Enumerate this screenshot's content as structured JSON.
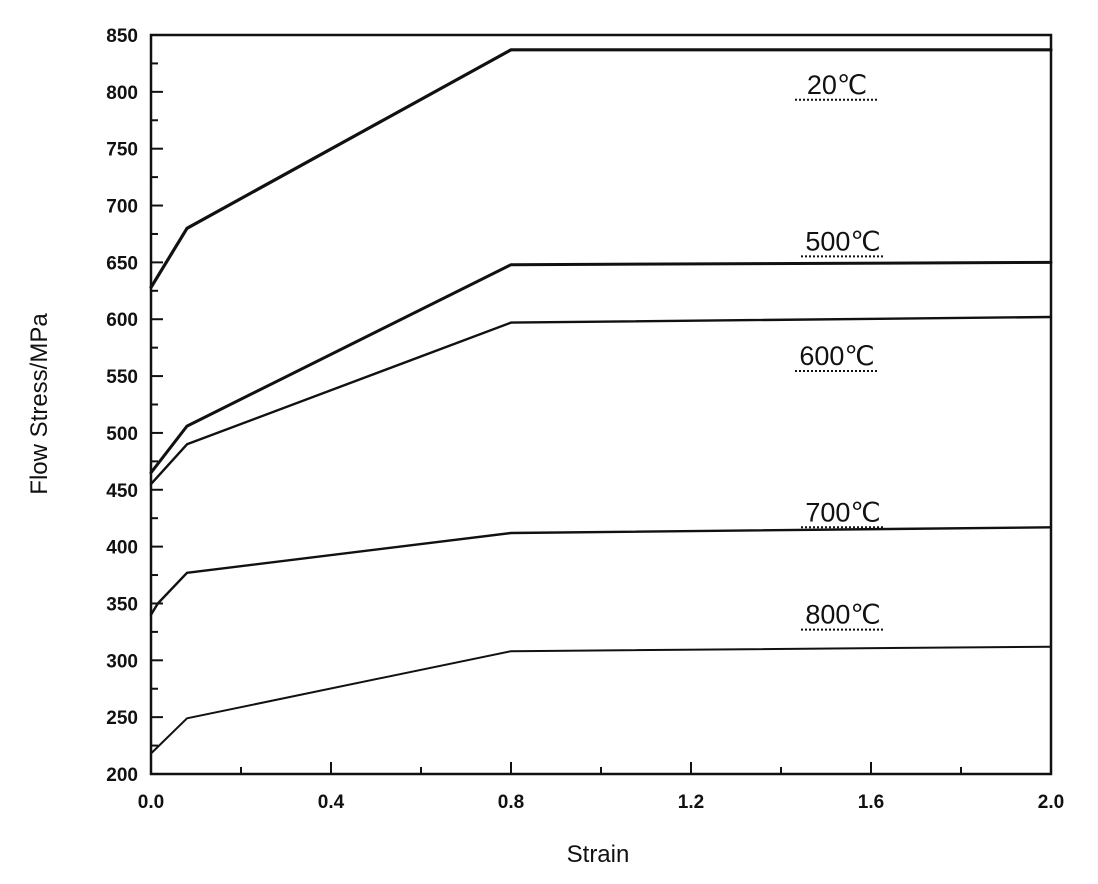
{
  "chart_data": {
    "type": "line",
    "title": "",
    "xlabel": "Strain",
    "ylabel": "Flow Stress/MPa",
    "xlim": [
      0.0,
      2.0
    ],
    "ylim": [
      200,
      850
    ],
    "x_tick_labels": [
      "0.0",
      "0.4",
      "0.8",
      "1.2",
      "1.6",
      "2.0"
    ],
    "x_tick_values": [
      0.0,
      0.4,
      0.8,
      1.2,
      1.6,
      2.0
    ],
    "y_tick_labels": [
      "200",
      "250",
      "300",
      "350",
      "400",
      "450",
      "500",
      "550",
      "600",
      "650",
      "700",
      "750",
      "800",
      "850"
    ],
    "y_tick_values": [
      200,
      250,
      300,
      350,
      400,
      450,
      500,
      550,
      600,
      650,
      700,
      750,
      800,
      850
    ],
    "grid": false,
    "legend": "none",
    "series": [
      {
        "name": "20℃",
        "x": [
          0.0,
          0.08,
          0.8,
          2.0
        ],
        "y": [
          628,
          680,
          837,
          837
        ]
      },
      {
        "name": "500℃",
        "x": [
          0.0,
          0.08,
          0.8,
          2.0
        ],
        "y": [
          465,
          506,
          648,
          650
        ]
      },
      {
        "name": "600℃",
        "x": [
          0.0,
          0.08,
          0.8,
          2.0
        ],
        "y": [
          455,
          490,
          597,
          602
        ]
      },
      {
        "name": "700℃",
        "x": [
          0.0,
          0.015,
          0.08,
          0.8,
          2.0
        ],
        "y": [
          340,
          350,
          377,
          412,
          417
        ]
      },
      {
        "name": "800℃",
        "x": [
          0.0,
          0.08,
          0.8,
          2.0
        ],
        "y": [
          218,
          249,
          308,
          312
        ]
      }
    ]
  }
}
